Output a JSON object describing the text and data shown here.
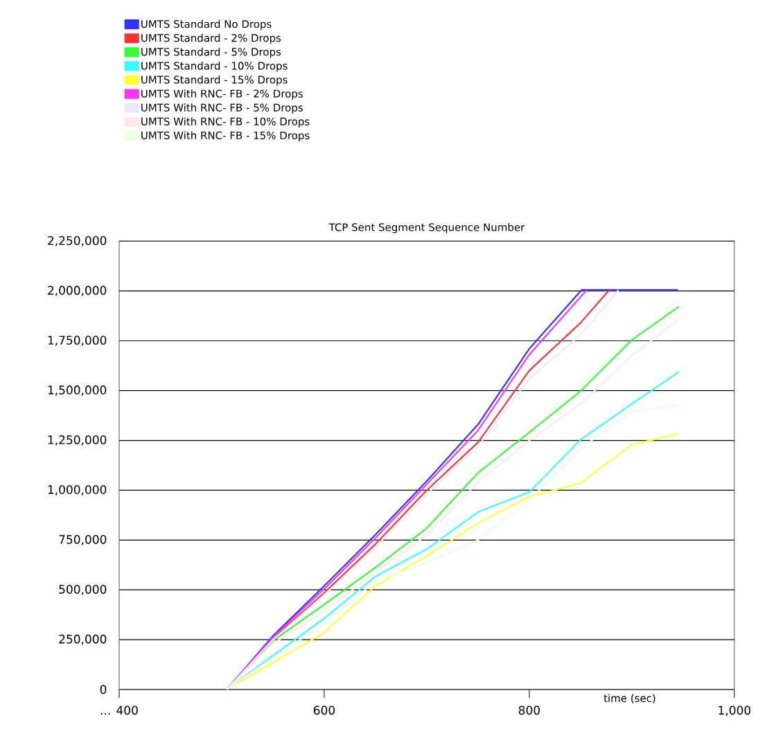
{
  "chart_data": {
    "type": "line",
    "title": "TCP Sent Segment Sequence Number",
    "xlabel": "time (sec)",
    "xlim": [
      400,
      1000
    ],
    "xticks": [
      {
        "value": 400,
        "label": "... 400"
      },
      600,
      800,
      {
        "value": 1000,
        "label": "1,000"
      }
    ],
    "ylim": [
      0,
      2250000
    ],
    "yticks": [
      0,
      {
        "value": 250000,
        "label": "250,000"
      },
      {
        "value": 500000,
        "label": "500,000"
      },
      {
        "value": 750000,
        "label": "750,000"
      },
      {
        "value": 1000000,
        "label": "1,000,000"
      },
      {
        "value": 1250000,
        "label": "1,250,000"
      },
      {
        "value": 1500000,
        "label": "1,500,000"
      },
      {
        "value": 1750000,
        "label": "1,750,000"
      },
      {
        "value": 2000000,
        "label": "2,000,000"
      },
      {
        "value": 2250000,
        "label": "2,250,000"
      }
    ],
    "grid": "y",
    "legend": "top left",
    "line_style": "solid",
    "series": [
      {
        "name": "UMTS Standard No Drops",
        "color": "#3333ff",
        "x": [
          505,
          550,
          600,
          650,
          700,
          750,
          800,
          851,
          945
        ],
        "values": [
          0,
          269000,
          520000,
          777000,
          1046000,
          1330000,
          1710000,
          2005000,
          2005000
        ]
      },
      {
        "name": "UMTS Standard - 2% Drops",
        "color": "#ff3333",
        "x": [
          505,
          550,
          600,
          650,
          700,
          750,
          800,
          850,
          878
        ],
        "values": [
          0,
          255000,
          485000,
          730000,
          1000000,
          1240000,
          1600000,
          1840000,
          2005000
        ]
      },
      {
        "name": "UMTS Standard - 5% Drops",
        "color": "#33ff33",
        "x": [
          505,
          550,
          600,
          650,
          700,
          750,
          800,
          850,
          900,
          946
        ],
        "values": [
          0,
          245000,
          426000,
          612000,
          809000,
          1087000,
          1290000,
          1497000,
          1754000,
          1922000
        ]
      },
      {
        "name": "UMTS Standard - 10% Drops",
        "color": "#33ffff",
        "x": [
          505,
          550,
          600,
          650,
          700,
          750,
          800,
          850,
          900,
          946
        ],
        "values": [
          0,
          170000,
          356000,
          567000,
          704000,
          890000,
          990000,
          1253000,
          1433000,
          1594000
        ]
      },
      {
        "name": "UMTS Standard - 15% Drops",
        "color": "#ffff33",
        "x": [
          505,
          550,
          600,
          650,
          700,
          750,
          800,
          850,
          900,
          946
        ],
        "values": [
          0,
          134000,
          286000,
          520000,
          670000,
          835000,
          967000,
          1035000,
          1228000,
          1285000
        ]
      },
      {
        "name": "UMTS With RNC- FB - 2% Drops",
        "color": "#ff33ff",
        "x": [
          505,
          550,
          600,
          650,
          700,
          750,
          800,
          856
        ],
        "values": [
          0,
          262000,
          505000,
          760000,
          1030000,
          1300000,
          1680000,
          2005000
        ]
      },
      {
        "name": "UMTS With RNC- FB - 5% Drops",
        "color": "#e8e8ff",
        "x": [
          505,
          550,
          600,
          650,
          700,
          750,
          800,
          850,
          887
        ],
        "values": [
          0,
          250000,
          475000,
          715000,
          980000,
          1220000,
          1560000,
          1780000,
          2005000
        ]
      },
      {
        "name": "UMTS With RNC- FB - 10% Drops",
        "color": "#ffe8e8",
        "x": [
          505,
          550,
          600,
          650,
          700,
          750,
          800,
          850,
          900,
          946
        ],
        "values": [
          0,
          230000,
          391000,
          590000,
          775000,
          1040000,
          1250000,
          1433000,
          1677000,
          1857000
        ]
      },
      {
        "name": "UMTS With RNC- FB - 15% Drops",
        "color": "#e8ffe8",
        "x": [
          505,
          550,
          600,
          650,
          700,
          750,
          800,
          850,
          900,
          946
        ],
        "values": [
          0,
          160000,
          330000,
          543000,
          636000,
          750000,
          950000,
          1210000,
          1395000,
          1427000
        ]
      }
    ]
  }
}
